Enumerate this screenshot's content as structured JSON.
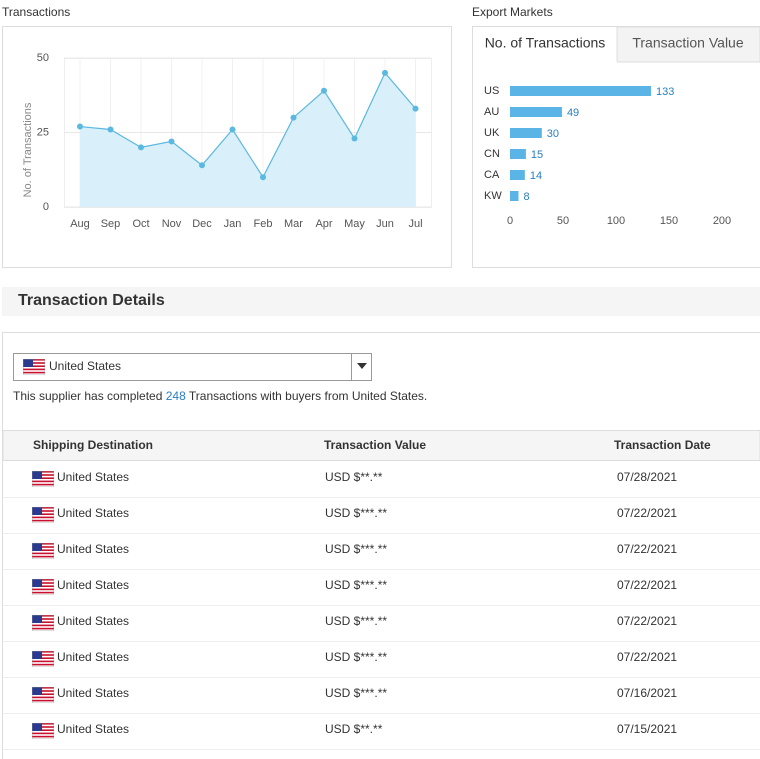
{
  "headings": {
    "transactions": "Transactions",
    "export_markets": "Export Markets",
    "details": "Transaction Details"
  },
  "tabs": [
    "No. of Transactions",
    "Transaction Value"
  ],
  "chart_data": [
    {
      "type": "line",
      "ylabel": "No. of Transactions",
      "categories": [
        "Aug",
        "Sep",
        "Oct",
        "Nov",
        "Dec",
        "Jan",
        "Feb",
        "Mar",
        "Apr",
        "May",
        "Jun",
        "Jul"
      ],
      "values": [
        27,
        26,
        20,
        22,
        14,
        26,
        10,
        30,
        39,
        23,
        45,
        33
      ],
      "color": "#5bb8e0",
      "fill": "#d9eff9",
      "ylim": [
        0,
        50
      ],
      "yticks": [
        0,
        25,
        50
      ],
      "grid": true
    },
    {
      "type": "barh",
      "categories": [
        "US",
        "AU",
        "UK",
        "CN",
        "CA",
        "KW"
      ],
      "values": [
        133,
        49,
        30,
        15,
        14,
        8
      ],
      "color": "#5ab4e5",
      "xlim": [
        0,
        200
      ],
      "xticks": [
        0,
        50,
        100,
        150,
        200
      ]
    }
  ],
  "selector": "United States",
  "summary": {
    "before": "This supplier has completed ",
    "count": 248,
    "after": " Transactions with buyers from United States."
  },
  "table": {
    "headers": [
      "Shipping Destination",
      "Transaction Value",
      "Transaction Date"
    ],
    "rows": [
      [
        "United States",
        "USD $**.**",
        "07/28/2021"
      ],
      [
        "United States",
        "USD $***.**",
        "07/22/2021"
      ],
      [
        "United States",
        "USD $***.**",
        "07/22/2021"
      ],
      [
        "United States",
        "USD $***.**",
        "07/22/2021"
      ],
      [
        "United States",
        "USD $***.**",
        "07/22/2021"
      ],
      [
        "United States",
        "USD $***.**",
        "07/22/2021"
      ],
      [
        "United States",
        "USD $***.**",
        "07/16/2021"
      ],
      [
        "United States",
        "USD $**.**",
        "07/15/2021"
      ]
    ]
  }
}
